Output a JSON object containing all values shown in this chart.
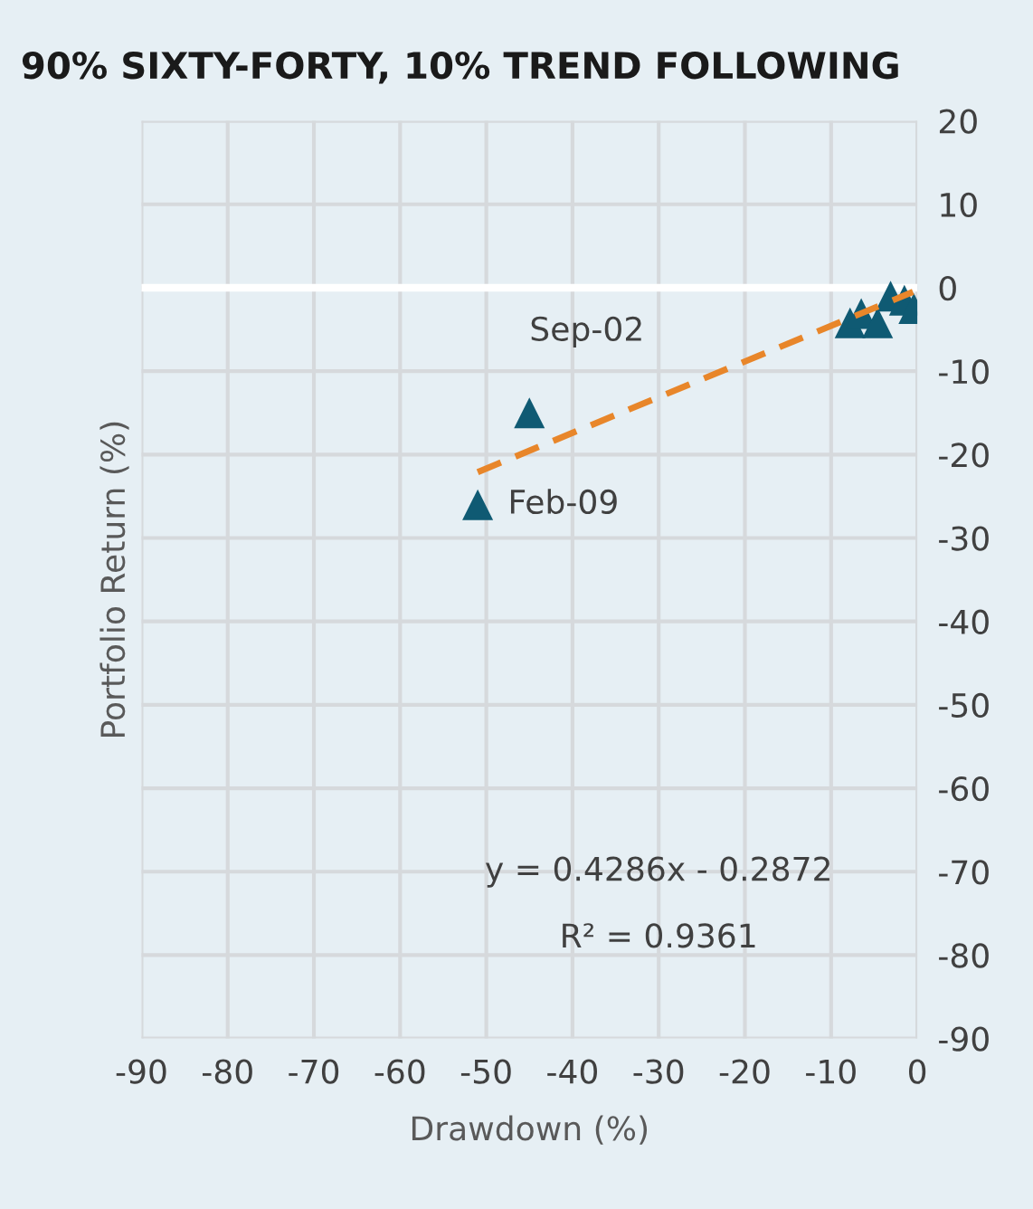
{
  "chart_data": {
    "type": "scatter",
    "title": "90% SIXTY-FORTY, 10% TREND FOLLOWING",
    "xlabel": "Drawdown (%)",
    "ylabel": "Portfolio Return (%)",
    "xlim": [
      -90,
      0
    ],
    "xticks": [
      -90,
      -80,
      -70,
      -60,
      -50,
      -40,
      -30,
      -20,
      -10,
      0
    ],
    "ylim": [
      -90,
      20
    ],
    "yticks": [
      -90,
      -80,
      -70,
      -60,
      -50,
      -40,
      -30,
      -20,
      -10,
      0,
      10,
      20
    ],
    "grid": true,
    "legend": false,
    "marker": "triangle",
    "series": [
      {
        "color": "#0f5a73",
        "x": [
          -51,
          -45,
          -7.8,
          -6.5,
          -4.6,
          -3.1,
          -1.5,
          -0.4
        ],
        "values": [
          -26,
          -15,
          -4.2,
          -3.1,
          -4.2,
          -1.0,
          -1.5,
          -2.5
        ]
      },
      {
        "type": "line",
        "color": "#e8862a",
        "line_style": "dashed",
        "marker": "none",
        "x": [
          -51,
          -0.5
        ],
        "values": [
          -22.1,
          -0.5
        ]
      }
    ],
    "ref_lines": [
      {
        "axis": "y",
        "value": 0,
        "color": "#ffffff"
      }
    ],
    "annotations": [
      {
        "text": "Sep-02",
        "x": -45,
        "y": -15
      },
      {
        "text": "Feb-09",
        "x": -51,
        "y": -26
      },
      "y = 0.4286x - 0.2872",
      "R² = 0.9361"
    ]
  }
}
